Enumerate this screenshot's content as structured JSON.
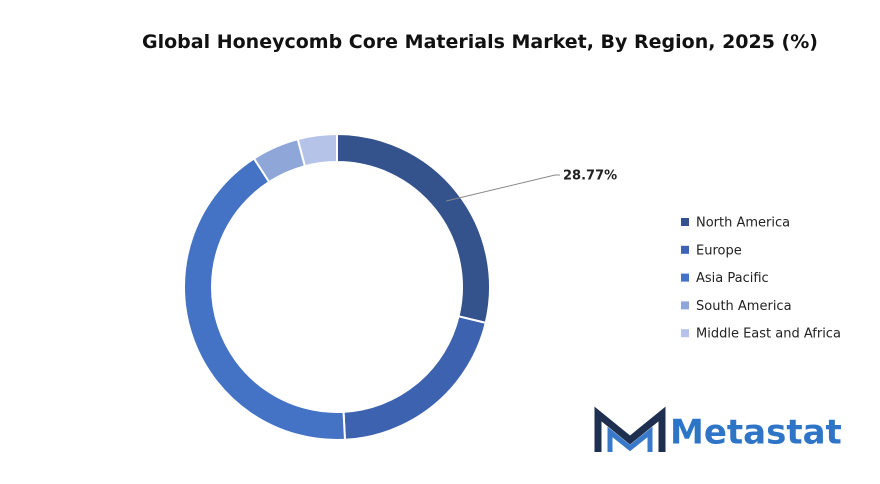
{
  "chart_data": {
    "type": "donut",
    "title": "Global Honeycomb Core Materials Market, By Region, 2025 (%)",
    "categories": [
      "North America",
      "Europe",
      "Asia Pacific",
      "South America",
      "Middle East and Africa"
    ],
    "values": [
      28.77,
      20.4,
      41.7,
      5.0,
      4.13
    ],
    "value_labels": [
      "28.77%",
      null,
      null,
      null,
      null
    ],
    "colors": [
      "#34528c",
      "#3c62b0",
      "#4472c4",
      "#8ea7d8",
      "#b6c3e8"
    ],
    "legend": "right"
  },
  "logo": "Metastat"
}
